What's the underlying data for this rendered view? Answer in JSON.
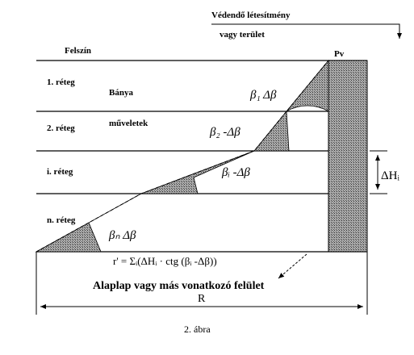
{
  "header": {
    "title_line1": "Védendő létesítmény",
    "title_line2": "vagy terület"
  },
  "labels": {
    "surface": "Felszín",
    "pv": "Pv",
    "mining_line1": "Bánya",
    "mining_line2": "műveletek"
  },
  "layers": [
    "1. réteg",
    "2. réteg",
    "i. réteg",
    "n. réteg"
  ],
  "angles": [
    "β₁  Δβ",
    "β₂ -Δβ",
    "βᵢ -Δβ",
    "βₙ  Δβ"
  ],
  "delta_h": "ΔHᵢ",
  "formula": "r' = Σᵢ(ΔHᵢ · ctg (βᵢ -Δβ))",
  "base": "Alaplap vagy más vonatkozó felület",
  "distance": "R",
  "caption": "2. ábra"
}
